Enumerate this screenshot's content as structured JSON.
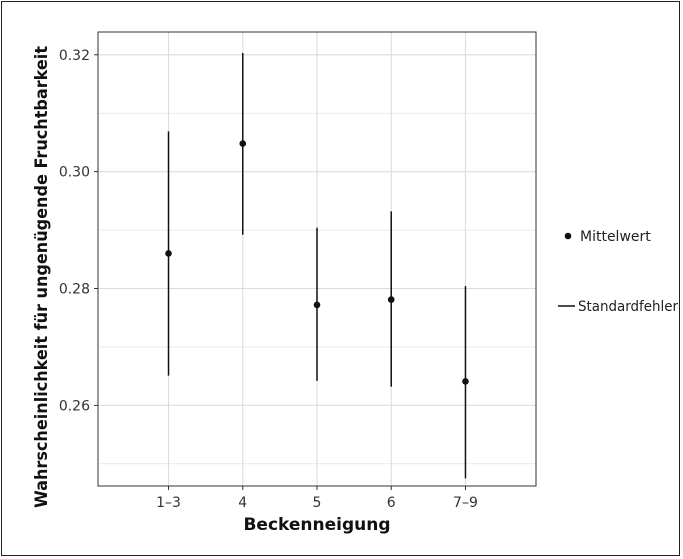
{
  "chart_data": {
    "type": "scatter",
    "title": "",
    "xlabel": "Beckenneigung",
    "ylabel": "Wahrscheinlichkeit für ungenügende Fruchtbarkeit",
    "categories": [
      "1–3",
      "4",
      "5",
      "6",
      "7–9"
    ],
    "series": [
      {
        "name": "Mittelwert",
        "values": [
          0.286,
          0.3048,
          0.2772,
          0.2781,
          0.2641
        ]
      },
      {
        "name": "Standardfehler",
        "lower": [
          0.2651,
          0.2892,
          0.2642,
          0.2632,
          0.2475
        ],
        "upper": [
          0.3069,
          0.3203,
          0.2904,
          0.2932,
          0.2804
        ]
      }
    ],
    "y_ticks": [
      "0.26",
      "0.28",
      "0.30",
      "0.32"
    ],
    "ylim": [
      0.2462,
      0.3239
    ],
    "grid": true,
    "legend": "right",
    "colors": {
      "points": "#111111",
      "grid": "#dcdcdc",
      "border": "#333333"
    }
  }
}
